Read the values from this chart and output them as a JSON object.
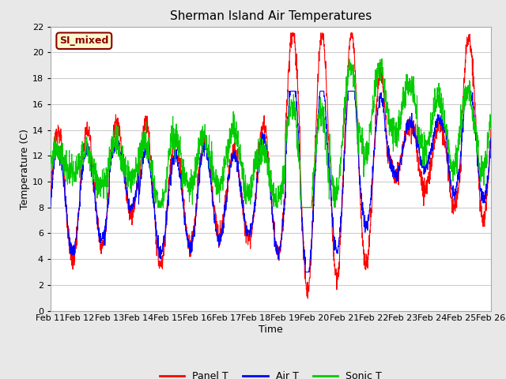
{
  "title": "Sherman Island Air Temperatures",
  "xlabel": "Time",
  "ylabel": "Temperature (C)",
  "ylim": [
    0,
    22
  ],
  "yticks": [
    0,
    2,
    4,
    6,
    8,
    10,
    12,
    14,
    16,
    18,
    20,
    22
  ],
  "xtick_labels": [
    "Feb 11",
    "Feb 12",
    "Feb 13",
    "Feb 14",
    "Feb 15",
    "Feb 16",
    "Feb 17",
    "Feb 18",
    "Feb 19",
    "Feb 20",
    "Feb 21",
    "Feb 22",
    "Feb 23",
    "Feb 24",
    "Feb 25",
    "Feb 26"
  ],
  "annotation_text": "SI_mixed",
  "annotation_color": "#8B0000",
  "annotation_bg": "#FFFACD",
  "line_colors": [
    "#FF0000",
    "#0000FF",
    "#00CC00"
  ],
  "line_labels": [
    "Panel T",
    "Air T",
    "Sonic T"
  ],
  "outer_bg": "#E8E8E8",
  "plot_bg": "#FFFFFF",
  "grid_color": "#CCCCCC",
  "title_fontsize": 11,
  "axis_label_fontsize": 9,
  "tick_fontsize": 8,
  "legend_fontsize": 9
}
